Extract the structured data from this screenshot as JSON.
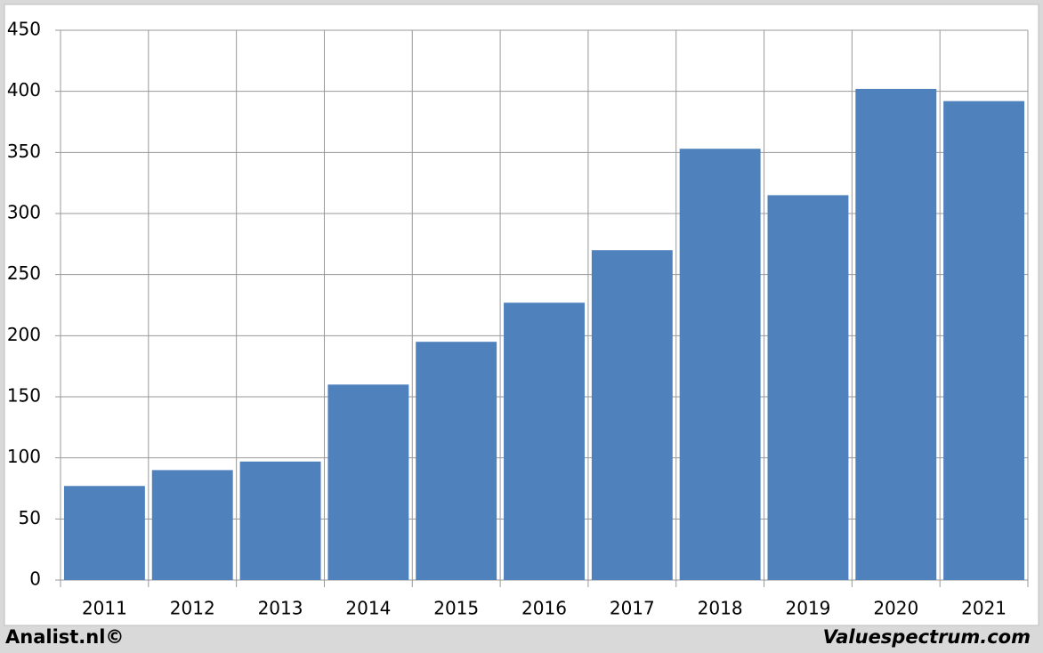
{
  "chart_data": {
    "type": "bar",
    "categories": [
      "2011",
      "2012",
      "2013",
      "2014",
      "2015",
      "2016",
      "2017",
      "2018",
      "2019",
      "2020",
      "2021"
    ],
    "values": [
      77,
      90,
      97,
      160,
      195,
      227,
      270,
      353,
      315,
      402,
      392
    ],
    "color": "#4f81bd",
    "ylim": [
      0,
      450
    ],
    "yticks": [
      0,
      50,
      100,
      150,
      200,
      250,
      300,
      350,
      400,
      450
    ],
    "grid": true,
    "footer_left": "Analist.nl©",
    "footer_right": "Valuespectrum.com"
  }
}
